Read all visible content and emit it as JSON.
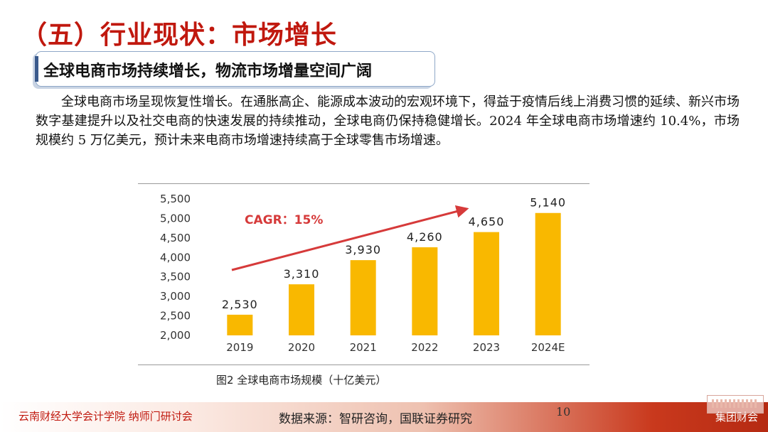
{
  "slide": {
    "title": "（五）行业现状：市场增长",
    "subtitle": "全球电商市场持续增长，物流市场增量空间广阔",
    "body": "全球电商市场呈现恢复性增长。在通胀高企、能源成本波动的宏观环境下，得益于疫情后线上消费习惯的延续、新兴市场数字基建提升以及社交电商的快速发展的持续推动，全球电商仍保持稳健增长。2024 年全球电商市场增速约 10.4%，市场规模约 5 万亿美元，预计未来电商市场增速持续高于全球零售市场增速。",
    "caption": "图2 全球电商市场规模（十亿美元）",
    "page_number": "10"
  },
  "footer": {
    "left": "云南财经大学会计学院 纳师门研讨会",
    "source": "数据来源：智研咨询，国联证券研究",
    "right": "集团财会"
  },
  "chart_data": {
    "type": "bar",
    "categories": [
      "2019",
      "2020",
      "2021",
      "2022",
      "2023",
      "2024E"
    ],
    "values": [
      2530,
      3310,
      3930,
      4260,
      4650,
      5140
    ],
    "data_labels": [
      "2,530",
      "3,310",
      "3,930",
      "4,260",
      "4,650",
      "5,140"
    ],
    "ylim": [
      2000,
      5500
    ],
    "yticks": [
      2000,
      2500,
      3000,
      3500,
      4000,
      4500,
      5000,
      5500
    ],
    "ytick_labels": [
      "2,000",
      "2,500",
      "3,000",
      "3,500",
      "4,000",
      "4,500",
      "5,000",
      "5,500"
    ],
    "annotation": "CAGR：15%",
    "grid": false,
    "bar_color": "#f9b800",
    "arrow_color": "#d63a3a"
  }
}
